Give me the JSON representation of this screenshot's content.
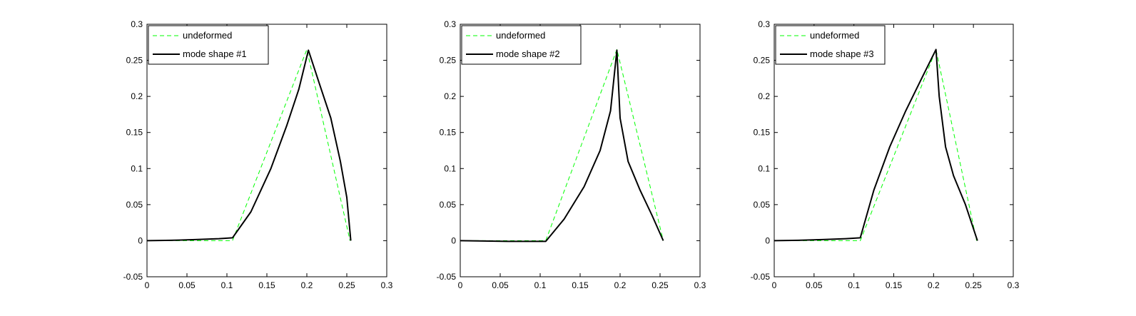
{
  "chart_data": [
    {
      "type": "line",
      "title": "",
      "xlabel": "",
      "ylabel": "",
      "xlim": [
        0,
        0.3
      ],
      "ylim": [
        -0.05,
        0.3
      ],
      "xticks": [
        "0",
        "0.05",
        "0.1",
        "0.15",
        "0.2",
        "0.25",
        "0.3"
      ],
      "yticks": [
        "-0.05",
        "0",
        "0.05",
        "0.1",
        "0.15",
        "0.2",
        "0.25",
        "0.3"
      ],
      "grid": false,
      "legend_position": "top-left",
      "series": [
        {
          "name": "undeformed",
          "style": "dashed",
          "color": "#00ff00",
          "x": [
            0,
            0.107,
            0.2,
            0.254
          ],
          "y": [
            0,
            0,
            0.265,
            0
          ]
        },
        {
          "name": "mode shape #1",
          "style": "solid",
          "color": "#000000",
          "x": [
            0,
            0.03,
            0.06,
            0.09,
            0.107,
            0.13,
            0.155,
            0.175,
            0.19,
            0.202,
            0.215,
            0.23,
            0.242,
            0.25,
            0.255
          ],
          "y": [
            0,
            0.0005,
            0.0015,
            0.0028,
            0.004,
            0.04,
            0.1,
            0.16,
            0.21,
            0.264,
            0.22,
            0.17,
            0.11,
            0.06,
            0
          ]
        }
      ]
    },
    {
      "type": "line",
      "title": "",
      "xlabel": "",
      "ylabel": "",
      "xlim": [
        0,
        0.3
      ],
      "ylim": [
        -0.05,
        0.3
      ],
      "xticks": [
        "0",
        "0.05",
        "0.1",
        "0.15",
        "0.2",
        "0.25",
        "0.3"
      ],
      "yticks": [
        "-0.05",
        "0",
        "0.05",
        "0.1",
        "0.15",
        "0.2",
        "0.25",
        "0.3"
      ],
      "grid": false,
      "legend_position": "top-left",
      "series": [
        {
          "name": "undeformed",
          "style": "dashed",
          "color": "#00ff00",
          "x": [
            0,
            0.107,
            0.196,
            0.254
          ],
          "y": [
            0,
            0,
            0.265,
            0
          ]
        },
        {
          "name": "mode shape #2",
          "style": "solid",
          "color": "#000000",
          "x": [
            0,
            0.03,
            0.06,
            0.09,
            0.107,
            0.13,
            0.155,
            0.175,
            0.188,
            0.196,
            0.2,
            0.21,
            0.225,
            0.24,
            0.254
          ],
          "y": [
            0,
            -0.0005,
            -0.001,
            -0.001,
            -0.001,
            0.03,
            0.075,
            0.125,
            0.18,
            0.264,
            0.17,
            0.11,
            0.07,
            0.035,
            0
          ]
        }
      ]
    },
    {
      "type": "line",
      "title": "",
      "xlabel": "",
      "ylabel": "",
      "xlim": [
        0,
        0.3
      ],
      "ylim": [
        -0.05,
        0.3
      ],
      "xticks": [
        "0",
        "0.05",
        "0.1",
        "0.15",
        "0.2",
        "0.25",
        "0.3"
      ],
      "yticks": [
        "-0.05",
        "0",
        "0.05",
        "0.1",
        "0.15",
        "0.2",
        "0.25",
        "0.3"
      ],
      "grid": false,
      "legend_position": "top-left",
      "series": [
        {
          "name": "undeformed",
          "style": "dashed",
          "color": "#00ff00",
          "x": [
            0,
            0.108,
            0.203,
            0.254
          ],
          "y": [
            0,
            0,
            0.265,
            0
          ]
        },
        {
          "name": "mode shape #3",
          "style": "solid",
          "color": "#000000",
          "x": [
            0,
            0.03,
            0.06,
            0.09,
            0.108,
            0.125,
            0.145,
            0.165,
            0.185,
            0.203,
            0.207,
            0.215,
            0.225,
            0.24,
            0.255
          ],
          "y": [
            0,
            0.0005,
            0.0015,
            0.0028,
            0.004,
            0.07,
            0.13,
            0.18,
            0.225,
            0.265,
            0.2,
            0.13,
            0.09,
            0.05,
            0
          ]
        }
      ]
    }
  ]
}
